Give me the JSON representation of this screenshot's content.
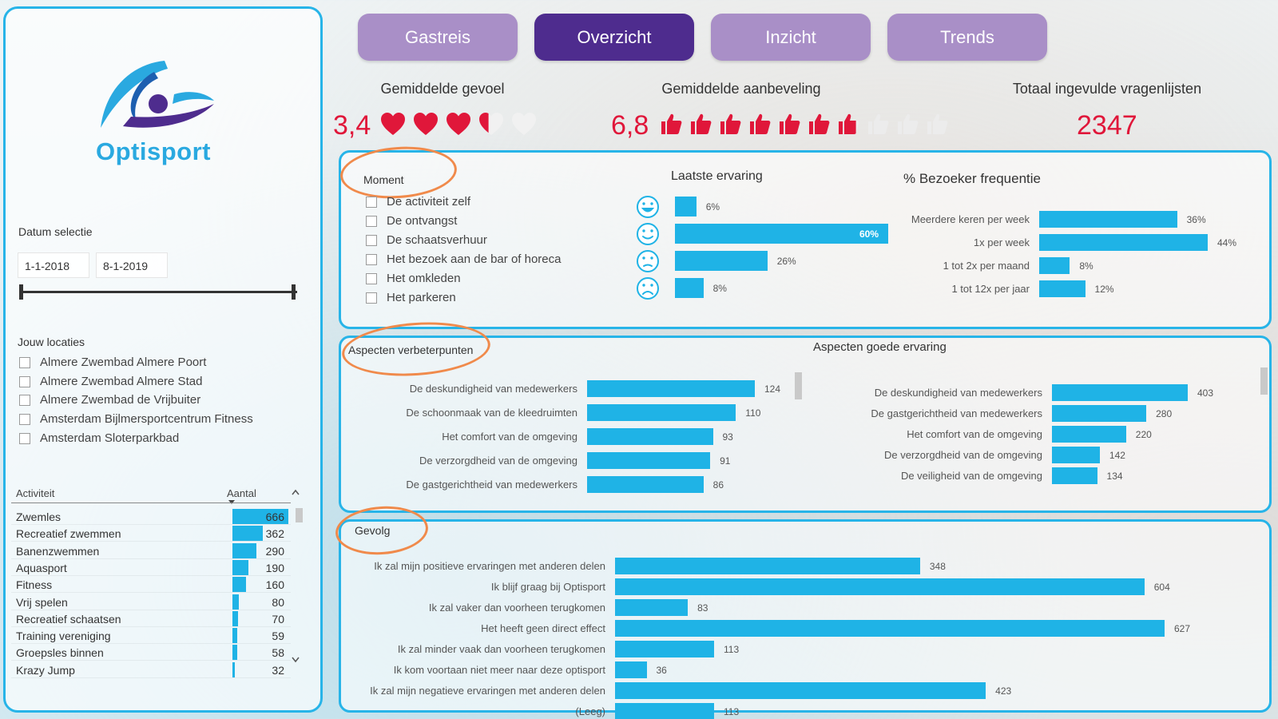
{
  "brand": {
    "name": "Optisport",
    "accent": "#2aa9e0",
    "purple": "#4e2c8e"
  },
  "tabs": [
    {
      "label": "Gastreis",
      "active": false
    },
    {
      "label": "Overzicht",
      "active": true
    },
    {
      "label": "Inzicht",
      "active": false
    },
    {
      "label": "Trends",
      "active": false
    }
  ],
  "kpis": {
    "feeling": {
      "title": "Gemiddelde gevoel",
      "value": "3,4",
      "max": 5,
      "icon": "heart-icon"
    },
    "recommend": {
      "title": "Gemiddelde aanbeveling",
      "value": "6,8",
      "max": 10,
      "icon": "thumbs-up-icon"
    },
    "total": {
      "title": "Totaal ingevulde vragenlijsten",
      "value": "2347"
    }
  },
  "filters": {
    "date": {
      "label": "Datum selectie",
      "from": "1-1-2018",
      "to": "8-1-2019"
    },
    "locations": {
      "label": "Jouw locaties",
      "items": [
        "Almere Zwembad Almere Poort",
        "Almere Zwembad Almere Stad",
        "Almere Zwembad de Vrijbuiter",
        "Amsterdam Bijlmersportcentrum Fitness",
        "Amsterdam Sloterparkbad"
      ]
    },
    "moment": {
      "label": "Moment",
      "items": [
        "De activiteit zelf",
        "De ontvangst",
        "De schaatsverhuur",
        "Het bezoek aan de bar of horeca",
        "Het omkleden",
        "Het parkeren"
      ]
    }
  },
  "activity_table": {
    "headers": {
      "activity": "Activiteit",
      "count": "Aantal"
    },
    "rows": [
      {
        "name": "Zwemles",
        "value": 666
      },
      {
        "name": "Recreatief zwemmen",
        "value": 362
      },
      {
        "name": "Banenzwemmen",
        "value": 290
      },
      {
        "name": "Aquasport",
        "value": 190
      },
      {
        "name": "Fitness",
        "value": 160
      },
      {
        "name": "Vrij spelen",
        "value": 80
      },
      {
        "name": "Recreatief schaatsen",
        "value": 70
      },
      {
        "name": "Training vereniging",
        "value": 59
      },
      {
        "name": "Groepsles binnen",
        "value": 58
      },
      {
        "name": "Krazy Jump",
        "value": 32
      }
    ]
  },
  "chart_data": [
    {
      "id": "laatste",
      "type": "bar",
      "title": "Laatste ervaring",
      "categories": [
        "very-happy",
        "happy",
        "neutral",
        "sad"
      ],
      "values": [
        6,
        60,
        26,
        8
      ],
      "value_labels": [
        "6%",
        "60%",
        "26%",
        "8%"
      ]
    },
    {
      "id": "frequentie",
      "type": "bar",
      "title": "% Bezoeker frequentie",
      "categories": [
        "Meerdere keren per week",
        "1x per week",
        "1 tot 2x per maand",
        "1 tot 12x per jaar"
      ],
      "values": [
        36,
        44,
        8,
        12
      ],
      "value_labels": [
        "36%",
        "44%",
        "8%",
        "12%"
      ]
    },
    {
      "id": "verbeter",
      "type": "bar",
      "title": "Aspecten verbeterpunten",
      "categories": [
        "De deskundigheid van medewerkers",
        "De schoonmaak van de kleedruimten",
        "Het comfort van de omgeving",
        "De verzorgdheid van de omgeving",
        "De gastgerichtheid van medewerkers"
      ],
      "values": [
        124,
        110,
        93,
        91,
        86
      ]
    },
    {
      "id": "goed",
      "type": "bar",
      "title": "Aspecten goede ervaring",
      "categories": [
        "De deskundigheid van medewerkers",
        "De gastgerichtheid van medewerkers",
        "Het comfort van de omgeving",
        "De verzorgdheid van de omgeving",
        "De veiligheid van de omgeving"
      ],
      "values": [
        403,
        280,
        220,
        142,
        134
      ]
    },
    {
      "id": "gevolg",
      "type": "bar",
      "title": "Gevolg",
      "categories": [
        "Ik zal mijn positieve ervaringen met anderen delen",
        "Ik blijf graag bij Optisport",
        "Ik zal vaker dan voorheen terugkomen",
        "Het heeft geen direct effect",
        "Ik zal minder vaak dan voorheen terugkomen",
        "Ik kom voortaan niet meer naar deze optisport",
        "Ik zal mijn negatieve ervaringen met anderen delen",
        "(Leeg)"
      ],
      "values": [
        348,
        604,
        83,
        627,
        113,
        36,
        423,
        113
      ]
    }
  ]
}
